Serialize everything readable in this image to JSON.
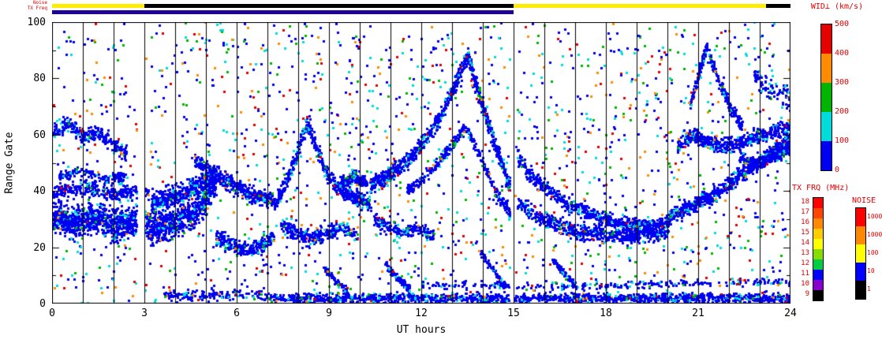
{
  "labels": {
    "noise_strip": "Noise",
    "txfreq_strip": "TX Freq"
  },
  "text_colors": {
    "annotation_red": "#e00000",
    "axis_black": "#000000"
  },
  "chart_data": {
    "type": "scatter",
    "title": "",
    "xlabel": "UT hours",
    "ylabel": "Range Gate",
    "xlim": [
      0,
      24
    ],
    "ylim": [
      0,
      100
    ],
    "x_major_ticks": [
      0,
      3,
      6,
      9,
      12,
      15,
      18,
      21,
      24
    ],
    "x_minor_tick_step": 1,
    "y_major_ticks": [
      0,
      20,
      40,
      60,
      80,
      100
    ],
    "y_minor_tick_step": 10,
    "grid": "vertical black line at every hour",
    "background": "#ffffff",
    "colorbars": {
      "wid": {
        "title": "WID⊥ (km/s)",
        "ticks": [
          500,
          400,
          300,
          200,
          100,
          0
        ],
        "segments_top_to_bottom": [
          "#e60000",
          "#ff8c00",
          "#00b400",
          "#00dcdc",
          "#0000f0"
        ]
      },
      "tx_frq": {
        "title": "TX FRQ (MHz)",
        "labels": [
          18,
          17,
          16,
          15,
          14,
          13,
          12,
          11,
          10,
          9
        ],
        "colors": [
          "#ff0000",
          "#ff4400",
          "#ff8800",
          "#ffcc00",
          "#ffff00",
          "#88dd00",
          "#00cc44",
          "#0000ff",
          "#8800cc",
          "#000000"
        ]
      },
      "noise": {
        "title": "NOISE",
        "labels": [
          "10000",
          "1000",
          "100",
          "10",
          "1"
        ],
        "colors": [
          "#ff0000",
          "#ff8800",
          "#ffff00",
          "#0000ff",
          "#000000"
        ]
      }
    },
    "strips": {
      "noise_strip": {
        "label": "Noise",
        "segments": [
          {
            "t0": 0,
            "t1": 3,
            "color": "#ffec00"
          },
          {
            "t0": 3,
            "t1": 15,
            "color": "#000000"
          },
          {
            "t0": 15,
            "t1": 23.2,
            "color": "#ffec00"
          },
          {
            "t0": 23.2,
            "t1": 24,
            "color": "#000000"
          }
        ]
      },
      "txfreq_strip": {
        "label": "TX Freq",
        "segments": [
          {
            "t0": 0,
            "t1": 15,
            "color": "#1e0096"
          }
        ]
      }
    },
    "point_palette": {
      "colors": {
        "blue": "#0000f0",
        "cyan": "#00dcdc",
        "green": "#00b400",
        "orange": "#ff8c00",
        "red": "#e00000"
      },
      "band_weights": {
        "blue": 0.87,
        "cyan": 0.09,
        "green": 0.02,
        "orange": 0.01,
        "red": 0.01
      },
      "scatter_weights": {
        "blue": 0.42,
        "cyan": 0.22,
        "green": 0.13,
        "orange": 0.11,
        "red": 0.12
      }
    },
    "data_gaps": [
      [
        2.72,
        3.0
      ],
      [
        14.85,
        15.02
      ]
    ],
    "background_scatter": {
      "count": 1800
    },
    "bands": [
      {
        "name": "left-main-blob",
        "path": [
          [
            0,
            31
          ],
          [
            0.7,
            29
          ],
          [
            1.4,
            31
          ],
          [
            2.1,
            28
          ],
          [
            2.7,
            30
          ],
          [
            3.2,
            27
          ],
          [
            3.8,
            29
          ],
          [
            4.4,
            31
          ],
          [
            4.9,
            36
          ],
          [
            5.3,
            44
          ]
        ],
        "hw": 8,
        "count": 1500
      },
      {
        "name": "left-mid-band",
        "path": [
          [
            0,
            40
          ],
          [
            1,
            41
          ],
          [
            2,
            39
          ],
          [
            3.1,
            40
          ]
        ],
        "hw": 4,
        "count": 300
      },
      {
        "name": "upper-left-band",
        "path": [
          [
            0,
            61
          ],
          [
            0.5,
            64
          ],
          [
            1,
            59
          ],
          [
            1.5,
            61
          ],
          [
            2,
            56
          ],
          [
            2.4,
            53
          ]
        ],
        "hw": 4,
        "count": 280
      },
      {
        "name": "left-45-band",
        "path": [
          [
            0.2,
            45
          ],
          [
            0.9,
            47
          ],
          [
            1.6,
            44
          ],
          [
            2.3,
            45
          ]
        ],
        "hw": 3,
        "count": 140
      },
      {
        "name": "rise-3-5",
        "path": [
          [
            3.2,
            36
          ],
          [
            3.8,
            38
          ],
          [
            4.4,
            40
          ],
          [
            4.9,
            43
          ],
          [
            5.4,
            47
          ]
        ],
        "hw": 5,
        "count": 420
      },
      {
        "name": "descend-5-7",
        "path": [
          [
            4.6,
            51
          ],
          [
            5.0,
            48
          ],
          [
            5.4,
            45
          ],
          [
            5.9,
            42
          ],
          [
            6.4,
            39
          ],
          [
            6.9,
            37
          ],
          [
            7.3,
            36
          ]
        ],
        "hw": 4,
        "count": 450
      },
      {
        "name": "low-5-7",
        "path": [
          [
            5.3,
            24
          ],
          [
            5.8,
            21
          ],
          [
            6.3,
            19
          ],
          [
            6.8,
            21
          ],
          [
            7.2,
            24
          ]
        ],
        "hw": 4,
        "count": 260
      },
      {
        "name": "peak-8",
        "path": [
          [
            7.3,
            38
          ],
          [
            7.6,
            44
          ],
          [
            7.9,
            52
          ],
          [
            8.1,
            60
          ],
          [
            8.3,
            64
          ],
          [
            8.6,
            54
          ],
          [
            8.9,
            46
          ],
          [
            9.3,
            41
          ],
          [
            9.8,
            38
          ],
          [
            10.3,
            36
          ]
        ],
        "hw": 4,
        "count": 520
      },
      {
        "name": "low-8-10",
        "path": [
          [
            7.4,
            28
          ],
          [
            7.9,
            25
          ],
          [
            8.4,
            23
          ],
          [
            8.9,
            25
          ],
          [
            9.4,
            27
          ],
          [
            9.9,
            24
          ]
        ],
        "hw": 4,
        "count": 300
      },
      {
        "name": "blob-9-10",
        "path": [
          [
            9.3,
            43
          ],
          [
            9.8,
            45
          ],
          [
            10.2,
            43
          ]
        ],
        "hw": 3,
        "count": 140
      },
      {
        "name": "tent-rise-10-13",
        "path": [
          [
            10.3,
            42
          ],
          [
            10.8,
            45
          ],
          [
            11.3,
            49
          ],
          [
            11.8,
            54
          ],
          [
            12.2,
            60
          ],
          [
            12.6,
            67
          ],
          [
            13.0,
            76
          ],
          [
            13.3,
            84
          ],
          [
            13.5,
            88
          ]
        ],
        "hw": 4,
        "count": 560
      },
      {
        "name": "tent-fall-13-15",
        "path": [
          [
            13.5,
            88
          ],
          [
            13.7,
            80
          ],
          [
            13.9,
            72
          ],
          [
            14.2,
            62
          ],
          [
            14.5,
            52
          ],
          [
            14.8,
            43
          ],
          [
            15.0,
            38
          ]
        ],
        "hw": 4,
        "count": 360
      },
      {
        "name": "tent-inner",
        "path": [
          [
            11.5,
            40
          ],
          [
            12.0,
            44
          ],
          [
            12.5,
            50
          ],
          [
            13.0,
            57
          ],
          [
            13.4,
            63
          ],
          [
            13.8,
            54
          ],
          [
            14.2,
            44
          ],
          [
            14.6,
            36
          ],
          [
            15.0,
            30
          ]
        ],
        "hw": 3,
        "count": 360
      },
      {
        "name": "low-10-12",
        "path": [
          [
            10.4,
            30
          ],
          [
            10.9,
            27
          ],
          [
            11.4,
            25
          ],
          [
            11.9,
            27
          ],
          [
            12.4,
            24
          ]
        ],
        "hw": 3,
        "count": 180
      },
      {
        "name": "descend-15-20",
        "path": [
          [
            15.1,
            52
          ],
          [
            15.5,
            46
          ],
          [
            16.0,
            41
          ],
          [
            16.5,
            37
          ],
          [
            17.0,
            34
          ],
          [
            17.6,
            31
          ],
          [
            18.2,
            29
          ],
          [
            18.8,
            28
          ],
          [
            19.4,
            28
          ],
          [
            20.0,
            29
          ]
        ],
        "hw": 4,
        "count": 620
      },
      {
        "name": "low-15-20",
        "path": [
          [
            15.1,
            36
          ],
          [
            15.6,
            32
          ],
          [
            16.1,
            29
          ],
          [
            16.7,
            27
          ],
          [
            17.3,
            25
          ],
          [
            18.0,
            24
          ],
          [
            18.7,
            24
          ],
          [
            19.4,
            25
          ],
          [
            20.0,
            26
          ]
        ],
        "hw": 4,
        "count": 620
      },
      {
        "name": "rise-20-24",
        "path": [
          [
            20.0,
            31
          ],
          [
            20.5,
            33
          ],
          [
            21.0,
            36
          ],
          [
            21.5,
            39
          ],
          [
            22.0,
            43
          ],
          [
            22.5,
            47
          ],
          [
            23.0,
            51
          ],
          [
            23.5,
            55
          ],
          [
            24.0,
            59
          ]
        ],
        "hw": 4,
        "count": 660
      },
      {
        "name": "upper-20-24",
        "path": [
          [
            20.3,
            56
          ],
          [
            20.8,
            60
          ],
          [
            21.3,
            58
          ],
          [
            21.8,
            56
          ],
          [
            22.3,
            57
          ],
          [
            22.8,
            59
          ],
          [
            23.3,
            61
          ],
          [
            23.8,
            62
          ],
          [
            24.0,
            63
          ]
        ],
        "hw": 4,
        "count": 520
      },
      {
        "name": "spike-up-21",
        "path": [
          [
            20.7,
            70
          ],
          [
            20.9,
            78
          ],
          [
            21.1,
            86
          ],
          [
            21.25,
            91
          ]
        ],
        "hw": 3,
        "count": 130
      },
      {
        "name": "spike-down-21-22",
        "path": [
          [
            21.25,
            91
          ],
          [
            21.5,
            83
          ],
          [
            21.8,
            75
          ],
          [
            22.1,
            68
          ],
          [
            22.4,
            63
          ]
        ],
        "hw": 3,
        "count": 170
      },
      {
        "name": "right-50s-blob",
        "path": [
          [
            22.3,
            52
          ],
          [
            22.8,
            50
          ],
          [
            23.3,
            52
          ],
          [
            23.8,
            54
          ],
          [
            24.0,
            55
          ]
        ],
        "hw": 3,
        "count": 260
      },
      {
        "name": "top-right-sparse",
        "path": [
          [
            22.8,
            80
          ],
          [
            23.4,
            76
          ],
          [
            24.0,
            73
          ]
        ],
        "hw": 6,
        "count": 90
      },
      {
        "name": "bottom-main",
        "path": [
          [
            7,
            2
          ],
          [
            24,
            2
          ]
        ],
        "hw": 2.5,
        "count": 1450
      },
      {
        "name": "bottom-early",
        "path": [
          [
            3.5,
            3
          ],
          [
            7,
            3
          ]
        ],
        "hw": 3,
        "count": 150
      },
      {
        "name": "bottom-secondary",
        "path": [
          [
            12,
            7
          ],
          [
            16,
            6
          ],
          [
            20,
            7
          ],
          [
            24,
            8
          ]
        ],
        "hw": 2,
        "count": 260
      },
      {
        "name": "streak-9",
        "path": [
          [
            8.8,
            13
          ],
          [
            9.2,
            8
          ],
          [
            9.6,
            4
          ]
        ],
        "hw": 2,
        "count": 80
      },
      {
        "name": "streak-11",
        "path": [
          [
            10.8,
            14
          ],
          [
            11.2,
            9
          ],
          [
            11.6,
            5
          ]
        ],
        "hw": 2,
        "count": 80
      },
      {
        "name": "streak-14",
        "path": [
          [
            13.9,
            18
          ],
          [
            14.3,
            12
          ],
          [
            14.7,
            6
          ]
        ],
        "hw": 2,
        "count": 90
      },
      {
        "name": "streak-16",
        "path": [
          [
            16.2,
            16
          ],
          [
            16.6,
            11
          ],
          [
            17.0,
            6
          ]
        ],
        "hw": 2,
        "count": 80
      }
    ]
  }
}
